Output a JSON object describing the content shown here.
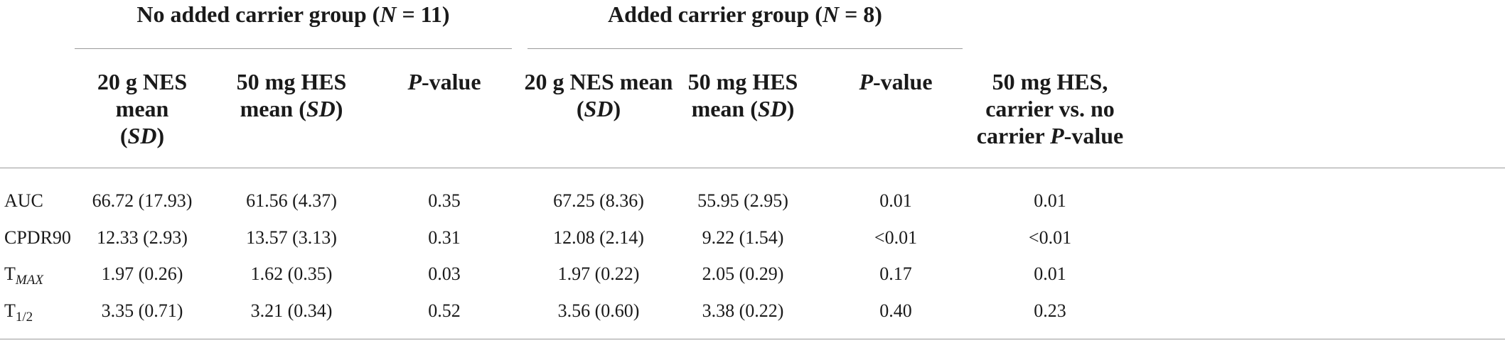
{
  "groups": [
    {
      "title_prefix": "No added carrier group (",
      "n_label": "N",
      "n_value": " = 11)"
    },
    {
      "title_prefix": "Added carrier group (",
      "n_label": "N",
      "n_value": " = 8)"
    }
  ],
  "columns": {
    "nes_mean_a": {
      "line1": "20 g NES mean",
      "open": "(",
      "sd": "SD",
      "close": ")"
    },
    "hes_mean_a": {
      "line1": "50 mg HES",
      "line2_prefix": "mean (",
      "sd": "SD",
      "close": ")"
    },
    "pvalue_a": {
      "p": "P",
      "rest": "-value"
    },
    "nes_mean_b": {
      "line1": "20 g NES mean",
      "open": "(",
      "sd": "SD",
      "close": ")"
    },
    "hes_mean_b": {
      "line1": "50 mg HES",
      "line2_prefix": "mean (",
      "sd": "SD",
      "close": ")"
    },
    "pvalue_b": {
      "p": "P",
      "rest": "-value"
    },
    "carrier_compare": {
      "line1": "50 mg HES,",
      "line2": "carrier vs. no",
      "line3_prefix": "carrier ",
      "p": "P",
      "line3_suffix": "-value"
    }
  },
  "rows": [
    {
      "label": "AUC",
      "label_sub": "",
      "values": [
        "66.72 (17.93)",
        "61.56 (4.37)",
        "0.35",
        "67.25 (8.36)",
        "55.95 (2.95)",
        "0.01",
        "0.01"
      ]
    },
    {
      "label": "CPDR90",
      "label_sub": "",
      "values": [
        "12.33 (2.93)",
        "13.57 (3.13)",
        "0.31",
        "12.08 (2.14)",
        "9.22 (1.54)",
        "<0.01",
        "<0.01"
      ]
    },
    {
      "label": "T",
      "label_sub": "MAX",
      "values": [
        "1.97 (0.26)",
        "1.62 (0.35)",
        "0.03",
        "1.97 (0.22)",
        "2.05 (0.29)",
        "0.17",
        "0.01"
      ]
    },
    {
      "label": "T",
      "label_sub": "1/2",
      "values": [
        "3.35 (0.71)",
        "3.21 (0.34)",
        "0.52",
        "3.56 (0.60)",
        "3.38 (0.22)",
        "0.40",
        "0.23"
      ]
    }
  ]
}
